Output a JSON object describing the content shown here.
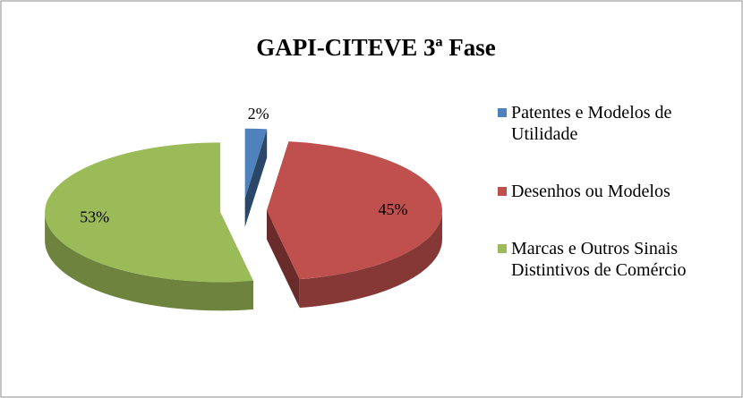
{
  "chart_data": {
    "type": "pie",
    "title": "GAPI-CITEVE 3ª Fase",
    "categories": [
      "Patentes e Modelos de Utilidade",
      "Desenhos ou Modelos",
      "Marcas e Outros Sinais Distintivos de Comércio"
    ],
    "values": [
      2,
      45,
      53
    ],
    "value_labels": [
      "2%",
      "45%",
      "53%"
    ],
    "colors": [
      "#4f81bd",
      "#c0504d",
      "#9bbb59"
    ],
    "legend": "right"
  }
}
